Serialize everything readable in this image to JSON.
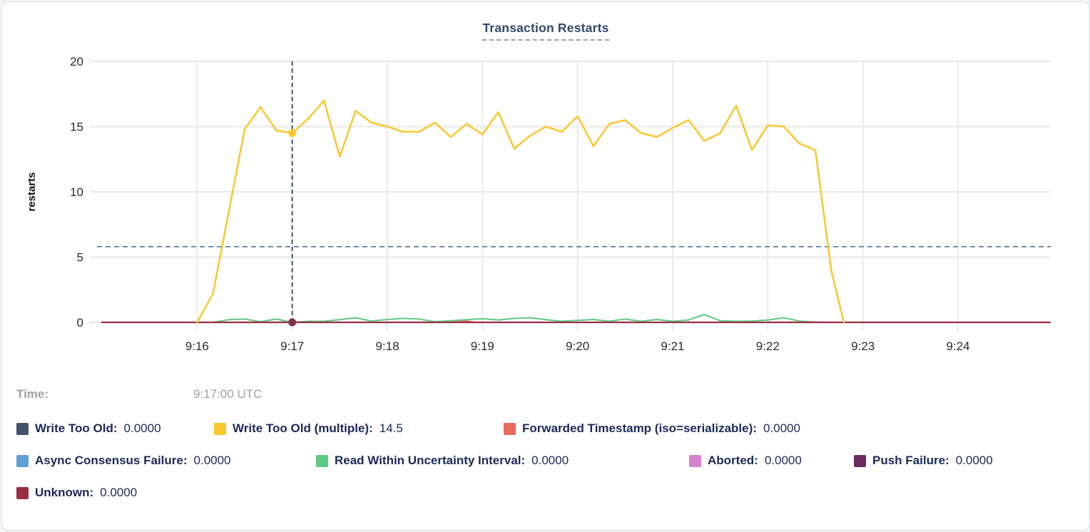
{
  "title": "Transaction Restarts",
  "tooltip": {
    "time_label": "Time:",
    "time_value": "9:17:00 UTC"
  },
  "legend": [
    {
      "label": "Write Too Old:",
      "value": "0.0000",
      "color": "#44536b"
    },
    {
      "label": "Write Too Old (multiple):",
      "value": "14.5",
      "color": "#fcc72c"
    },
    {
      "label": "Forwarded Timestamp (iso=serializable):",
      "value": "0.0000",
      "color": "#e8695e"
    },
    {
      "label": "Async Consensus Failure:",
      "value": "0.0000",
      "color": "#5f9fd6"
    },
    {
      "label": "Read Within Uncertainty Interval:",
      "value": "0.0000",
      "color": "#5fc985"
    },
    {
      "label": "Aborted:",
      "value": "0.0000",
      "color": "#d883cd"
    },
    {
      "label": "Push Failure:",
      "value": "0.0000",
      "color": "#6d2b5f"
    },
    {
      "label": "Unknown:",
      "value": "0.0000",
      "color": "#9a2e44"
    }
  ],
  "chart_data": {
    "type": "line",
    "title": "Transaction Restarts",
    "ylabel": "restarts",
    "ylim": [
      0,
      20
    ],
    "yticks": [
      {
        "v": 0,
        "label": "0"
      },
      {
        "v": 5,
        "label": "5"
      },
      {
        "v": 10,
        "label": "10"
      },
      {
        "v": 15,
        "label": "15"
      },
      {
        "v": 20,
        "label": "20"
      }
    ],
    "x_axis_note": "t = seconds after 9:15:00 UTC, data sampled every 10s",
    "x_range_seconds": [
      0,
      598
    ],
    "xticks": [
      {
        "t": 60,
        "label": "9:16"
      },
      {
        "t": 120,
        "label": "9:17"
      },
      {
        "t": 180,
        "label": "9:18"
      },
      {
        "t": 240,
        "label": "9:19"
      },
      {
        "t": 300,
        "label": "9:20"
      },
      {
        "t": 360,
        "label": "9:21"
      },
      {
        "t": 420,
        "label": "9:22"
      },
      {
        "t": 480,
        "label": "9:23"
      },
      {
        "t": 540,
        "label": "9:24"
      }
    ],
    "grid": true,
    "threshold_line": {
      "value": 5.8,
      "style": "dashed"
    },
    "crosshair": {
      "t": 120,
      "time": "9:17:00 UTC",
      "selected_series": "Write Too Old (multiple)",
      "selected_value": 14.5
    },
    "markers": [
      {
        "t": 120,
        "v": 14.5,
        "color": "#fcc72c"
      },
      {
        "t": 120,
        "v": 0,
        "color": "#823148"
      }
    ],
    "series": [
      {
        "name": "Write Too Old",
        "color": "#44536b",
        "width": 2,
        "points": [
          [
            0,
            0
          ],
          [
            598,
            0
          ]
        ]
      },
      {
        "name": "Async Consensus Failure",
        "color": "#5f9fd6",
        "width": 2,
        "points": [
          [
            0,
            0
          ],
          [
            598,
            0
          ]
        ]
      },
      {
        "name": "Aborted",
        "color": "#d883cd",
        "width": 2,
        "points": [
          [
            0,
            0
          ],
          [
            598,
            0
          ]
        ]
      },
      {
        "name": "Push Failure",
        "color": "#6d2b5f",
        "width": 2,
        "points": [
          [
            0,
            0
          ],
          [
            598,
            0
          ]
        ]
      },
      {
        "name": "Forwarded Timestamp (iso=serializable)",
        "color": "#e8695e",
        "width": 2,
        "points": [
          [
            0,
            0
          ],
          [
            220,
            0
          ],
          [
            228,
            0.12
          ],
          [
            236,
            0
          ],
          [
            598,
            0
          ]
        ]
      },
      {
        "name": "Read Within Uncertainty Interval",
        "color": "#5fc985",
        "width": 2,
        "points": [
          [
            0,
            0
          ],
          [
            70,
            0
          ],
          [
            80,
            0.2
          ],
          [
            90,
            0.25
          ],
          [
            100,
            0.05
          ],
          [
            110,
            0.25
          ],
          [
            120,
            0
          ],
          [
            130,
            0.08
          ],
          [
            140,
            0.08
          ],
          [
            150,
            0.2
          ],
          [
            160,
            0.35
          ],
          [
            170,
            0.1
          ],
          [
            180,
            0.22
          ],
          [
            190,
            0.3
          ],
          [
            200,
            0.25
          ],
          [
            210,
            0.05
          ],
          [
            220,
            0.12
          ],
          [
            230,
            0.2
          ],
          [
            240,
            0.28
          ],
          [
            250,
            0.18
          ],
          [
            260,
            0.3
          ],
          [
            270,
            0.35
          ],
          [
            280,
            0.2
          ],
          [
            290,
            0.08
          ],
          [
            300,
            0.15
          ],
          [
            310,
            0.22
          ],
          [
            320,
            0.08
          ],
          [
            330,
            0.25
          ],
          [
            340,
            0.08
          ],
          [
            350,
            0.22
          ],
          [
            360,
            0.08
          ],
          [
            370,
            0.18
          ],
          [
            380,
            0.6
          ],
          [
            390,
            0.12
          ],
          [
            400,
            0.08
          ],
          [
            410,
            0.1
          ],
          [
            420,
            0.18
          ],
          [
            430,
            0.35
          ],
          [
            440,
            0.1
          ],
          [
            450,
            0.02
          ],
          [
            460,
            0
          ],
          [
            598,
            0
          ]
        ]
      },
      {
        "name": "Unknown",
        "color": "#9a2e44",
        "width": 2.2,
        "points": [
          [
            0,
            0
          ],
          [
            598,
            0
          ]
        ]
      },
      {
        "name": "Write Too Old (multiple)",
        "color": "#fcc72c",
        "width": 2.5,
        "points": [
          [
            60,
            0
          ],
          [
            70,
            2.2
          ],
          [
            80,
            8.5
          ],
          [
            90,
            14.8
          ],
          [
            100,
            16.5
          ],
          [
            110,
            14.7
          ],
          [
            120,
            14.5
          ],
          [
            130,
            15.6
          ],
          [
            140,
            17.0
          ],
          [
            150,
            12.7
          ],
          [
            160,
            16.2
          ],
          [
            170,
            15.3
          ],
          [
            180,
            15.0
          ],
          [
            190,
            14.6
          ],
          [
            200,
            14.6
          ],
          [
            210,
            15.3
          ],
          [
            220,
            14.2
          ],
          [
            230,
            15.2
          ],
          [
            240,
            14.4
          ],
          [
            250,
            16.1
          ],
          [
            260,
            13.3
          ],
          [
            270,
            14.3
          ],
          [
            280,
            15.0
          ],
          [
            290,
            14.6
          ],
          [
            300,
            15.8
          ],
          [
            310,
            13.5
          ],
          [
            320,
            15.2
          ],
          [
            330,
            15.5
          ],
          [
            340,
            14.5
          ],
          [
            350,
            14.2
          ],
          [
            360,
            14.9
          ],
          [
            370,
            15.5
          ],
          [
            380,
            13.9
          ],
          [
            390,
            14.5
          ],
          [
            400,
            16.6
          ],
          [
            410,
            13.2
          ],
          [
            420,
            15.1
          ],
          [
            430,
            15.0
          ],
          [
            440,
            13.7
          ],
          [
            450,
            13.2
          ],
          [
            460,
            4.0
          ],
          [
            468,
            0
          ]
        ]
      }
    ]
  }
}
